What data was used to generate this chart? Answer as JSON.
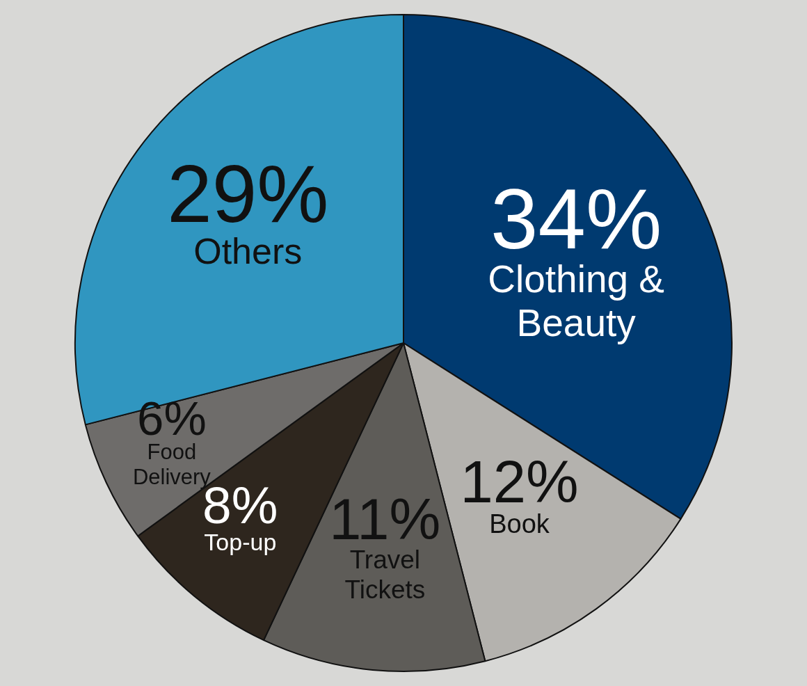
{
  "chart_data": {
    "type": "pie",
    "categories": [
      "Clothing & Beauty",
      "Book",
      "Travel Tickets",
      "Top-up",
      "Food Delivery",
      "Others"
    ],
    "values": [
      34,
      12,
      11,
      8,
      6,
      29
    ],
    "colors": [
      "#003a70",
      "#b4b2ae",
      "#5e5c58",
      "#2e261e",
      "#6e6c6a",
      "#3096c0"
    ],
    "value_labels": [
      "34%",
      "12%",
      "11%",
      "8%",
      "6%",
      "29%"
    ]
  }
}
